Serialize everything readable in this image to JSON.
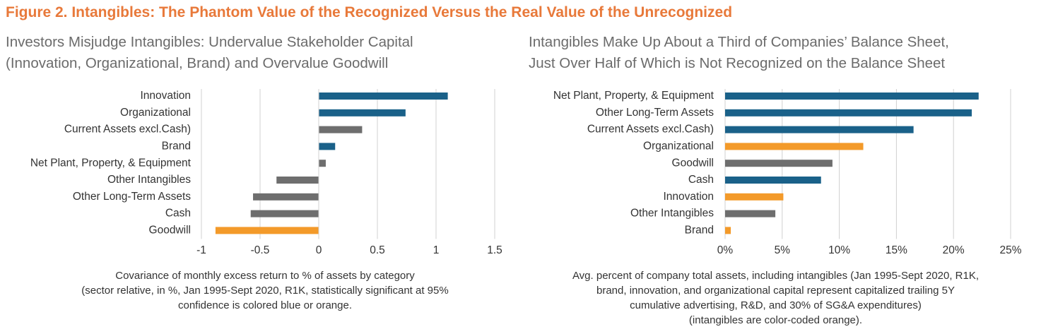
{
  "figure_title": "Figure 2. Intangibles: The Phantom Value of the Recognized Versus the Real Value of the Unrecognized",
  "colors": {
    "blue": "#1a6189",
    "gray": "#6e6e6e",
    "orange": "#f39a2a",
    "grid": "#d0d0d0",
    "title_orange": "#e8793a"
  },
  "left_panel": {
    "title_lines": [
      "Investors Misjudge Intangibles: Undervalue Stakeholder Capital",
      "(Innovation, Organizational, Brand) and Overvalue Goodwill"
    ],
    "caption_lines": [
      "Covariance of monthly excess return to % of assets by category",
      "(sector relative, in %, Jan 1995-Sept 2020, R1K, statistically significant at 95%",
      "confidence is colored blue or orange."
    ]
  },
  "right_panel": {
    "title_lines": [
      "Intangibles Make Up About a Third of Companies’ Balance Sheet,",
      "Just Over Half of Which is Not Recognized on the Balance Sheet"
    ],
    "caption_lines": [
      "Avg. percent of company total assets, including intangibles (Jan 1995-Sept 2020, R1K,",
      "brand, innovation, and organizational capital represent capitalized trailing 5Y",
      "cumulative advertising, R&D, and 30% of SG&A expenditures)",
      "(intangibles are color-coded orange)."
    ]
  },
  "chart_data": [
    {
      "type": "bar",
      "orientation": "horizontal",
      "title": "Investors Misjudge Intangibles: Undervalue Stakeholder Capital (Innovation, Organizational, Brand) and Overvalue Goodwill",
      "xlabel": "Covariance of monthly excess return to % of assets by category",
      "xlim": [
        -1,
        1.5
      ],
      "ticks": [
        -1,
        -0.5,
        0,
        0.5,
        1,
        1.5
      ],
      "tick_labels": [
        "-1",
        "-0.5",
        "0",
        "0.5",
        "1",
        "1.5"
      ],
      "grid": true,
      "categories": [
        "Innovation",
        "Organizational",
        "Current Assets excl.Cash)",
        "Brand",
        "Net Plant, Property, & Equipment",
        "Other Intangibles",
        "Other Long-Term Assets",
        "Cash",
        "Goodwill"
      ],
      "values": [
        1.1,
        0.74,
        0.37,
        0.14,
        0.06,
        -0.36,
        -0.56,
        -0.58,
        -0.88
      ],
      "colors": [
        "blue",
        "blue",
        "gray",
        "blue",
        "gray",
        "gray",
        "gray",
        "gray",
        "orange"
      ]
    },
    {
      "type": "bar",
      "orientation": "horizontal",
      "title": "Intangibles Make Up About a Third of Companies’ Balance Sheet, Just Over Half of Which is Not Recognized on the Balance Sheet",
      "xlabel": "Avg. percent of company total assets, including intangibles",
      "xlim": [
        0,
        25
      ],
      "ticks": [
        0,
        5,
        10,
        15,
        20,
        25
      ],
      "tick_labels": [
        "0%",
        "5%",
        "10%",
        "15%",
        "20%",
        "25%"
      ],
      "grid": true,
      "categories": [
        "Net Plant, Property, & Equipment",
        "Other Long-Term Assets",
        "Current Assets excl.Cash)",
        "Organizational",
        "Goodwill",
        "Cash",
        "Innovation",
        "Other Intangibles",
        "Brand"
      ],
      "values": [
        22.2,
        21.6,
        16.5,
        12.1,
        9.4,
        8.4,
        5.1,
        4.4,
        0.5
      ],
      "colors": [
        "blue",
        "blue",
        "blue",
        "orange",
        "gray",
        "blue",
        "orange",
        "gray",
        "orange"
      ]
    }
  ]
}
